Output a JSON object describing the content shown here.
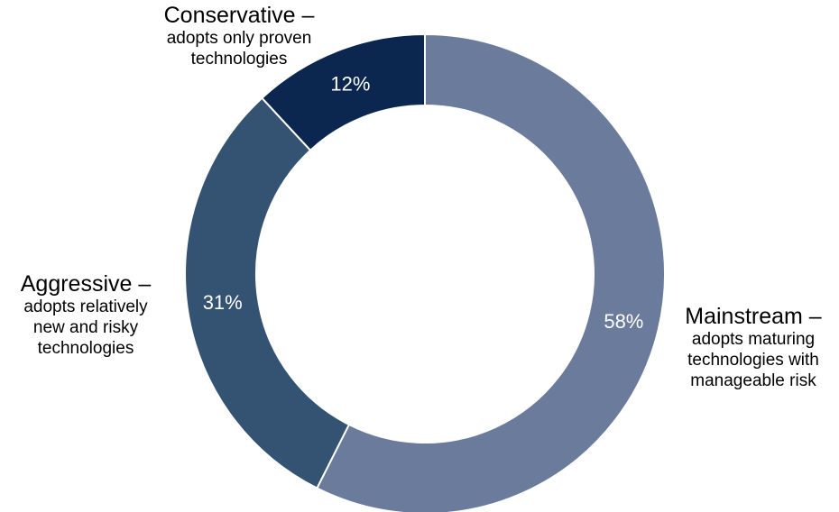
{
  "chart_data": {
    "type": "pie",
    "style": "donut",
    "title": "",
    "slices": [
      {
        "label": "Mainstream –",
        "description": [
          "adopts maturing",
          "technologies with",
          "manageable risk"
        ],
        "value": 58,
        "value_label": "58%",
        "color": "#6b7b9c"
      },
      {
        "label": "Aggressive –",
        "description": [
          "adopts relatively",
          "new and risky",
          "technologies"
        ],
        "value": 31,
        "value_label": "31%",
        "color": "#345373"
      },
      {
        "label": "Conservative –",
        "description": [
          "adopts only proven",
          "technologies"
        ],
        "value": 12,
        "value_label": "12%",
        "color": "#0b2750"
      }
    ]
  }
}
